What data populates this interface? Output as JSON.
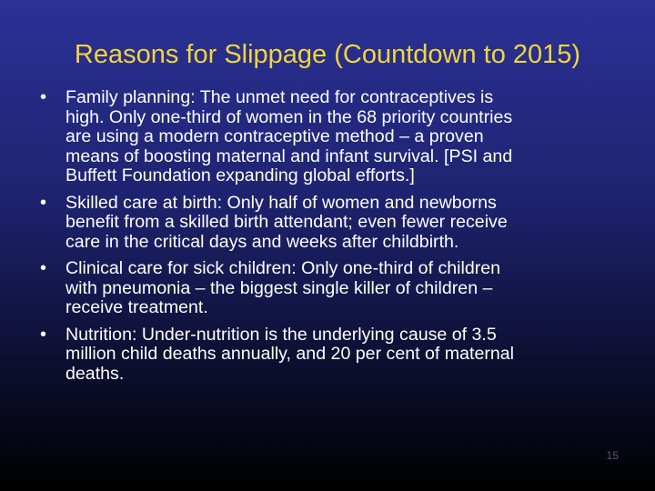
{
  "title": "Reasons for Slippage (Countdown to 2015)",
  "bullets": [
    {
      "lines": [
        "Family planning: The unmet need for contraceptives is",
        "high. Only one-third of women in the 68 priority countries",
        "are using a modern contraceptive method – a proven",
        "means of boosting maternal and infant survival. [PSI and",
        "Buffett Foundation expanding global efforts.]"
      ]
    },
    {
      "lines": [
        "Skilled care at birth: Only half of women and newborns",
        "benefit from a skilled birth attendant; even fewer receive",
        "care in the critical days and weeks after childbirth."
      ]
    },
    {
      "lines": [
        "Clinical care for sick children: Only one-third of children",
        "with pneumonia – the biggest single killer of children –",
        "receive treatment."
      ]
    },
    {
      "lines": [
        "Nutrition: Under-nutrition is the underlying cause of 3.5",
        "million child deaths annually, and 20 per cent of maternal",
        "deaths."
      ]
    }
  ],
  "slide_number": "15"
}
